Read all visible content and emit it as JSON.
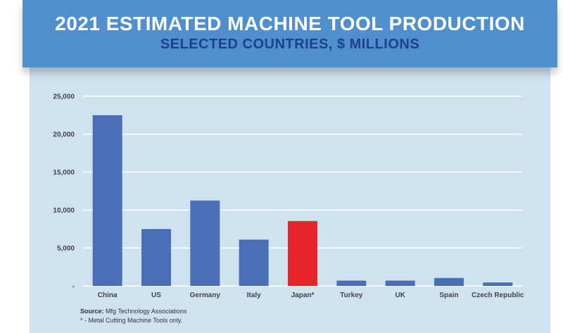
{
  "chart_data": {
    "type": "bar",
    "title": "2021 ESTIMATED MACHINE TOOL PRODUCTION",
    "subtitle": "SELECTED COUNTRIES, $ MILLIONS",
    "categories": [
      "China",
      "US",
      "Germany",
      "Italy",
      "Japan*",
      "Turkey",
      "UK",
      "Spain",
      "Czech Republic"
    ],
    "values": [
      22500,
      7500,
      11250,
      6100,
      8550,
      700,
      700,
      1050,
      450
    ],
    "colors": [
      "#4a6fb8",
      "#4a6fb8",
      "#4a6fb8",
      "#4a6fb8",
      "#e8242a",
      "#4a6fb8",
      "#4a6fb8",
      "#4a6fb8",
      "#4a6fb8"
    ],
    "y_ticks": [
      "-",
      "5,000",
      "10,000",
      "15,000",
      "20,000",
      "25,000"
    ],
    "ylim": [
      0,
      25000
    ],
    "grid": true,
    "legend": "none"
  },
  "notes": {
    "source_label": "Source:",
    "source_text": " Mfg Technology Associations",
    "footnote": "* - Metal Cutting Machine Tools only."
  },
  "colors": {
    "banner": "#4f8fcd",
    "panel": "#cfe2f0",
    "bar": "#4a6fb8",
    "highlight": "#e8242a"
  }
}
